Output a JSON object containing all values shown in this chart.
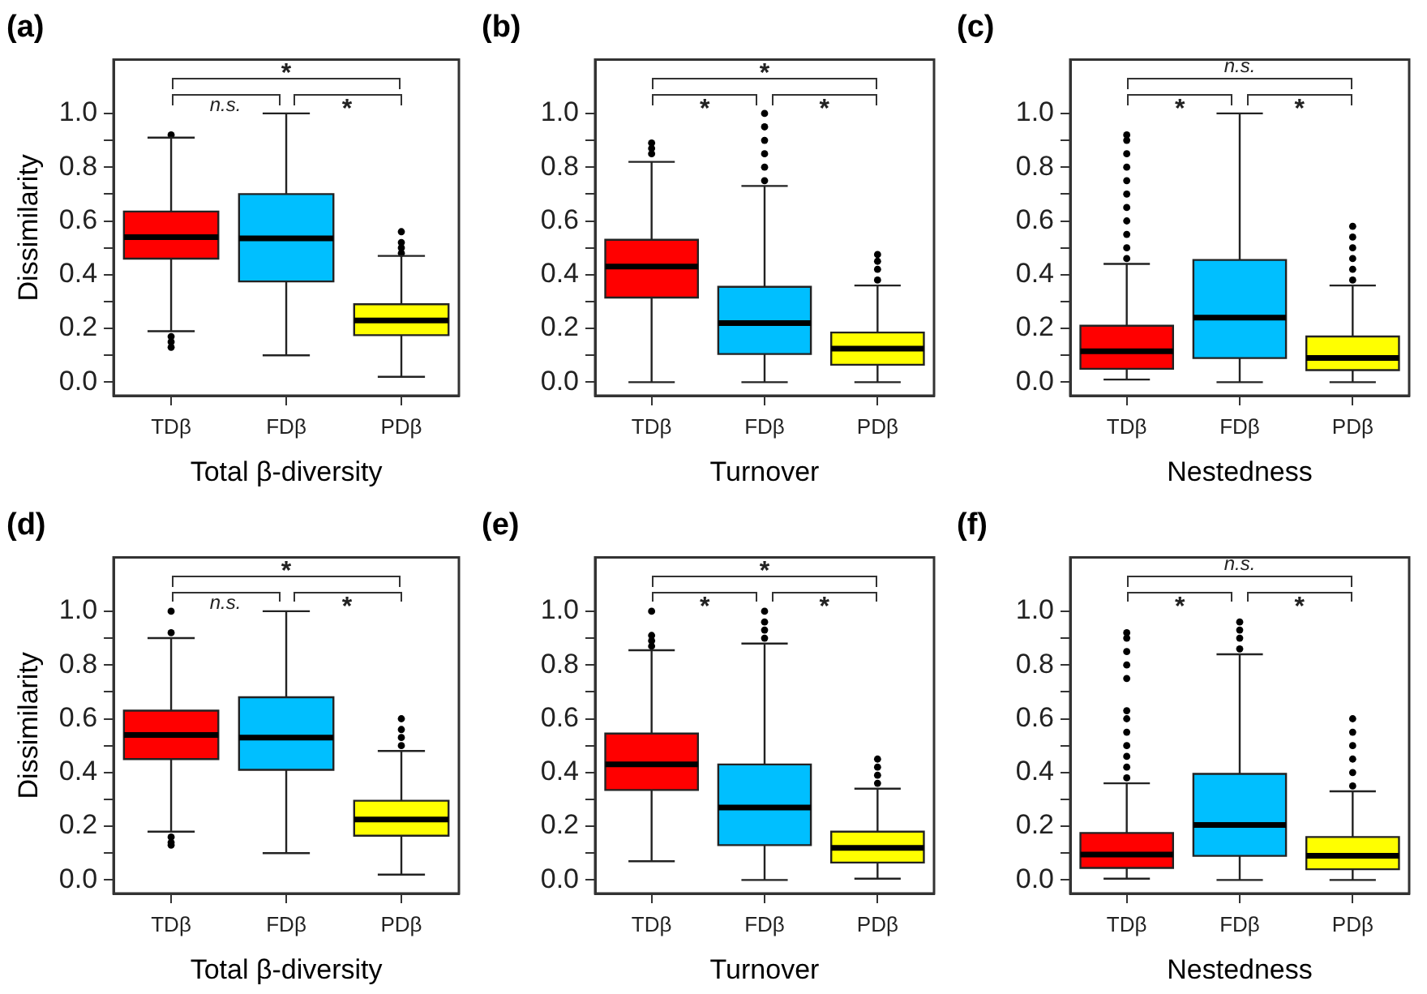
{
  "chart_data": [
    {
      "type": "box",
      "title": "(a)",
      "xlabel": "Total β-diversity",
      "ylabel": "Dissimilarity",
      "categories": [
        "TDβ",
        "FDβ",
        "PDβ"
      ],
      "colors": [
        "#ff0000",
        "#00bfff",
        "#ffff00"
      ],
      "boxes": [
        {
          "low": 0.19,
          "q1": 0.46,
          "median": 0.54,
          "q3": 0.635,
          "high": 0.91,
          "outliers": [
            0.92,
            0.17,
            0.15,
            0.13
          ]
        },
        {
          "low": 0.1,
          "q1": 0.375,
          "median": 0.535,
          "q3": 0.7,
          "high": 1.0
        },
        {
          "low": 0.02,
          "q1": 0.175,
          "median": 0.23,
          "q3": 0.29,
          "high": 0.47,
          "outliers": [
            0.48,
            0.5,
            0.52,
            0.56
          ]
        }
      ],
      "ylim": [
        -0.05,
        1.2
      ],
      "yticks": [
        {
          "value": 0,
          "label": "0.0"
        },
        {
          "value": 0.1,
          "label": null
        },
        0.2,
        {
          "value": 0.3,
          "label": null
        },
        0.4,
        {
          "value": 0.5,
          "label": null
        },
        0.6,
        {
          "value": 0.7,
          "label": null
        },
        0.8,
        {
          "value": 0.9,
          "label": null
        },
        {
          "value": 1,
          "label": "1.0"
        }
      ],
      "annotations": [
        "n.s.",
        "*",
        "*"
      ]
    },
    {
      "type": "box",
      "title": "(b)",
      "xlabel": "Turnover",
      "categories": [
        "TDβ",
        "FDβ",
        "PDβ"
      ],
      "colors": [
        "#ff0000",
        "#00bfff",
        "#ffff00"
      ],
      "boxes": [
        {
          "low": 0.0,
          "q1": 0.315,
          "median": 0.43,
          "q3": 0.53,
          "high": 0.82,
          "outliers": [
            0.85,
            0.87,
            0.89
          ]
        },
        {
          "low": 0.0,
          "q1": 0.105,
          "median": 0.22,
          "q3": 0.355,
          "high": 0.73,
          "outliers": [
            0.75,
            0.8,
            0.85,
            0.9,
            0.95,
            1.0
          ]
        },
        {
          "low": 0.0,
          "q1": 0.065,
          "median": 0.125,
          "q3": 0.185,
          "high": 0.36,
          "outliers": [
            0.38,
            0.42,
            0.45,
            0.475
          ]
        }
      ],
      "ylim": [
        -0.05,
        1.2
      ],
      "yticks": [
        {
          "value": 0,
          "label": "0.0"
        },
        {
          "value": 0.1,
          "label": null
        },
        0.2,
        {
          "value": 0.3,
          "label": null
        },
        0.4,
        {
          "value": 0.5,
          "label": null
        },
        0.6,
        {
          "value": 0.7,
          "label": null
        },
        0.8,
        {
          "value": 0.9,
          "label": null
        },
        {
          "value": 1,
          "label": "1.0"
        }
      ],
      "annotations": [
        "*",
        "*",
        "*"
      ]
    },
    {
      "type": "box",
      "title": "(c)",
      "xlabel": "Nestedness",
      "categories": [
        "TDβ",
        "FDβ",
        "PDβ"
      ],
      "colors": [
        "#ff0000",
        "#00bfff",
        "#ffff00"
      ],
      "boxes": [
        {
          "low": 0.01,
          "q1": 0.05,
          "median": 0.115,
          "q3": 0.21,
          "high": 0.44,
          "outliers": [
            0.46,
            0.5,
            0.55,
            0.6,
            0.65,
            0.7,
            0.75,
            0.8,
            0.85,
            0.9,
            0.92
          ]
        },
        {
          "low": 0.0,
          "q1": 0.09,
          "median": 0.24,
          "q3": 0.455,
          "high": 1.0
        },
        {
          "low": 0.0,
          "q1": 0.045,
          "median": 0.09,
          "q3": 0.17,
          "high": 0.36,
          "outliers": [
            0.38,
            0.42,
            0.46,
            0.5,
            0.54,
            0.58
          ]
        }
      ],
      "ylim": [
        -0.05,
        1.2
      ],
      "yticks": [
        {
          "value": 0,
          "label": "0.0"
        },
        {
          "value": 0.1,
          "label": null
        },
        0.2,
        {
          "value": 0.3,
          "label": null
        },
        0.4,
        {
          "value": 0.5,
          "label": null
        },
        0.6,
        {
          "value": 0.7,
          "label": null
        },
        0.8,
        {
          "value": 0.9,
          "label": null
        },
        {
          "value": 1,
          "label": "1.0"
        }
      ],
      "annotations": [
        "*",
        "*",
        "n.s."
      ]
    },
    {
      "type": "box",
      "title": "(d)",
      "xlabel": "Total β-diversity",
      "ylabel": "Dissimilarity",
      "categories": [
        "TDβ",
        "FDβ",
        "PDβ"
      ],
      "colors": [
        "#ff0000",
        "#00bfff",
        "#ffff00"
      ],
      "boxes": [
        {
          "low": 0.18,
          "q1": 0.45,
          "median": 0.54,
          "q3": 0.63,
          "high": 0.9,
          "outliers": [
            1.0,
            0.92,
            0.16,
            0.14,
            0.13
          ]
        },
        {
          "low": 0.1,
          "q1": 0.41,
          "median": 0.53,
          "q3": 0.68,
          "high": 1.0
        },
        {
          "low": 0.02,
          "q1": 0.165,
          "median": 0.225,
          "q3": 0.295,
          "high": 0.48,
          "outliers": [
            0.5,
            0.53,
            0.56,
            0.6
          ]
        }
      ],
      "ylim": [
        -0.05,
        1.2
      ],
      "yticks": [
        {
          "value": 0,
          "label": "0.0"
        },
        {
          "value": 0.1,
          "label": null
        },
        0.2,
        {
          "value": 0.3,
          "label": null
        },
        0.4,
        {
          "value": 0.5,
          "label": null
        },
        0.6,
        {
          "value": 0.7,
          "label": null
        },
        0.8,
        {
          "value": 0.9,
          "label": null
        },
        {
          "value": 1,
          "label": "1.0"
        }
      ],
      "annotations": [
        "n.s.",
        "*",
        "*"
      ]
    },
    {
      "type": "box",
      "title": "(e)",
      "xlabel": "Turnover",
      "categories": [
        "TDβ",
        "FDβ",
        "PDβ"
      ],
      "colors": [
        "#ff0000",
        "#00bfff",
        "#ffff00"
      ],
      "boxes": [
        {
          "low": 0.07,
          "q1": 0.335,
          "median": 0.43,
          "q3": 0.545,
          "high": 0.855,
          "outliers": [
            0.87,
            0.89,
            0.91,
            1.0
          ]
        },
        {
          "low": 0.0,
          "q1": 0.13,
          "median": 0.27,
          "q3": 0.43,
          "high": 0.88,
          "outliers": [
            0.9,
            0.93,
            0.96,
            1.0
          ]
        },
        {
          "low": 0.005,
          "q1": 0.065,
          "median": 0.12,
          "q3": 0.18,
          "high": 0.34,
          "outliers": [
            0.36,
            0.39,
            0.42,
            0.45
          ]
        }
      ],
      "ylim": [
        -0.05,
        1.2
      ],
      "yticks": [
        {
          "value": 0,
          "label": "0.0"
        },
        {
          "value": 0.1,
          "label": null
        },
        0.2,
        {
          "value": 0.3,
          "label": null
        },
        0.4,
        {
          "value": 0.5,
          "label": null
        },
        0.6,
        {
          "value": 0.7,
          "label": null
        },
        0.8,
        {
          "value": 0.9,
          "label": null
        },
        {
          "value": 1,
          "label": "1.0"
        }
      ],
      "annotations": [
        "*",
        "*",
        "*"
      ]
    },
    {
      "type": "box",
      "title": "(f)",
      "xlabel": "Nestedness",
      "categories": [
        "TDβ",
        "FDβ",
        "PDβ"
      ],
      "colors": [
        "#ff0000",
        "#00bfff",
        "#ffff00"
      ],
      "boxes": [
        {
          "low": 0.005,
          "q1": 0.045,
          "median": 0.095,
          "q3": 0.175,
          "high": 0.36,
          "outliers": [
            0.38,
            0.42,
            0.46,
            0.5,
            0.55,
            0.6,
            0.63,
            0.75,
            0.8,
            0.85,
            0.9,
            0.92
          ]
        },
        {
          "low": 0.0,
          "q1": 0.09,
          "median": 0.205,
          "q3": 0.395,
          "high": 0.84,
          "outliers": [
            0.86,
            0.9,
            0.93,
            0.96
          ]
        },
        {
          "low": 0.0,
          "q1": 0.04,
          "median": 0.09,
          "q3": 0.16,
          "high": 0.33,
          "outliers": [
            0.35,
            0.4,
            0.45,
            0.5,
            0.55,
            0.6
          ]
        }
      ],
      "ylim": [
        -0.05,
        1.2
      ],
      "yticks": [
        {
          "value": 0,
          "label": "0.0"
        },
        {
          "value": 0.1,
          "label": null
        },
        0.2,
        {
          "value": 0.3,
          "label": null
        },
        0.4,
        {
          "value": 0.5,
          "label": null
        },
        0.6,
        {
          "value": 0.7,
          "label": null
        },
        0.8,
        {
          "value": 0.9,
          "label": null
        },
        {
          "value": 1,
          "label": "1.0"
        }
      ],
      "annotations": [
        "*",
        "*",
        "n.s."
      ]
    }
  ]
}
